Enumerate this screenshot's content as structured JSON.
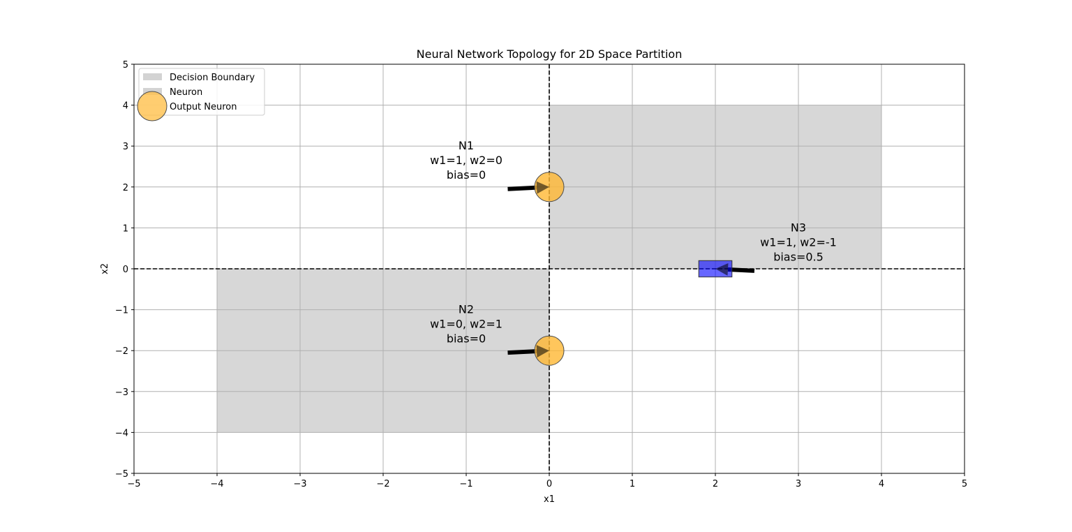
{
  "chart_data": {
    "type": "scatter",
    "title": "Neural Network Topology for 2D Space Partition",
    "xlabel": "x1",
    "ylabel": "x2",
    "xlim": [
      -5,
      5
    ],
    "ylim": [
      -5,
      5
    ],
    "xticks": [
      -5,
      -4,
      -3,
      -2,
      -1,
      0,
      1,
      2,
      3,
      4,
      5
    ],
    "yticks": [
      -5,
      -4,
      -3,
      -2,
      -1,
      0,
      1,
      2,
      3,
      4,
      5
    ],
    "grid": true,
    "legend_position": "upper-left",
    "legend": [
      {
        "label": "Decision Boundary",
        "marker": "patch",
        "color": "#d3d3d3"
      },
      {
        "label": "Neuron",
        "marker": "patch",
        "color": "#d3d3d3"
      },
      {
        "label": "Output Neuron",
        "marker": "circle",
        "color": "#ffc04c"
      }
    ],
    "regions": [
      {
        "x": [
          0,
          4
        ],
        "y": [
          0,
          4
        ],
        "color": "#d3d3d3"
      },
      {
        "x": [
          -4,
          0
        ],
        "y": [
          -4,
          0
        ],
        "color": "#d3d3d3"
      }
    ],
    "reference_lines": [
      {
        "orientation": "vertical",
        "value": 0,
        "style": "dashed"
      },
      {
        "orientation": "horizontal",
        "value": 0,
        "style": "dashed"
      }
    ],
    "neurons": [
      {
        "id": "N1",
        "shape": "circle",
        "x": 0,
        "y": 2,
        "color": "#ffb833",
        "label_lines": [
          "N1",
          "w1=1, w2=0",
          "bias=0"
        ],
        "text_pos": [
          -1,
          2.2
        ],
        "arrow_from": [
          -0.5,
          1.95
        ]
      },
      {
        "id": "N2",
        "shape": "circle",
        "x": 0,
        "y": -2,
        "color": "#ffb833",
        "label_lines": [
          "N2",
          "w1=0, w2=1",
          "bias=0"
        ],
        "text_pos": [
          -1,
          -1.8
        ],
        "arrow_from": [
          -0.5,
          -2.05
        ]
      },
      {
        "id": "N3",
        "shape": "square",
        "x": 2,
        "y": 0,
        "half_size": 0.2,
        "color": "#0000ff",
        "label_lines": [
          "N3",
          "w1=1, w2=-1",
          "bias=0.5"
        ],
        "text_pos": [
          3,
          0.2
        ],
        "arrow_from": [
          2.47,
          -0.05
        ]
      }
    ]
  }
}
